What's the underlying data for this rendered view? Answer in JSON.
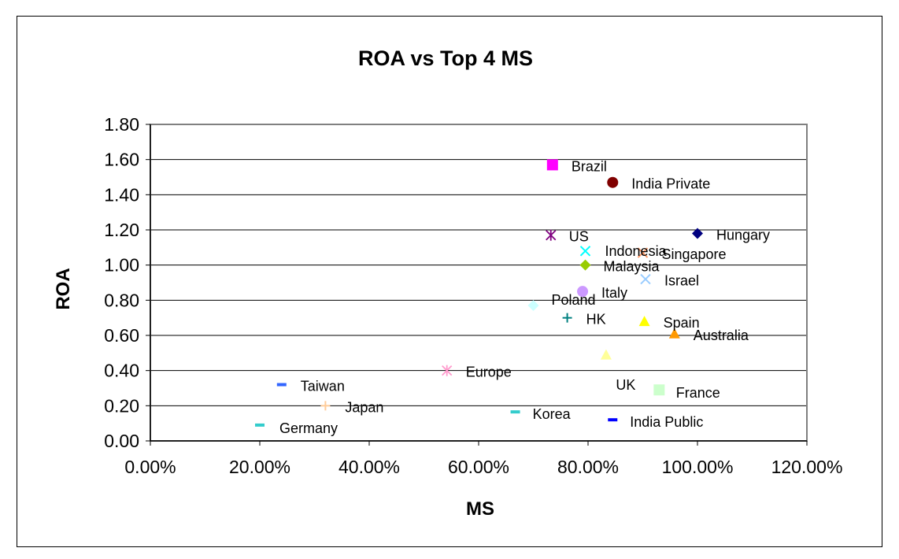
{
  "chart_data": {
    "type": "scatter",
    "title": "ROA vs Top 4 MS",
    "xlabel": "MS",
    "ylabel": "ROA",
    "xlim": [
      0,
      1.2
    ],
    "ylim": [
      0,
      1.8
    ],
    "x_ticks": [
      "0.00%",
      "20.00%",
      "40.00%",
      "60.00%",
      "80.00%",
      "100.00%",
      "120.00%"
    ],
    "y_ticks": [
      "0.00",
      "0.20",
      "0.40",
      "0.60",
      "0.80",
      "1.00",
      "1.20",
      "1.40",
      "1.60",
      "1.80"
    ],
    "grid": "horizontal",
    "legend": "none",
    "points": [
      {
        "label": "Brazil",
        "x": 0.735,
        "y": 1.57,
        "marker": "square",
        "color": "#FF00FF"
      },
      {
        "label": "India Private",
        "x": 0.845,
        "y": 1.47,
        "marker": "circle",
        "color": "#800000"
      },
      {
        "label": "Hungary",
        "x": 1.0,
        "y": 1.18,
        "marker": "diamond",
        "color": "#000080"
      },
      {
        "label": "US",
        "x": 0.732,
        "y": 1.17,
        "marker": "star",
        "color": "#800080"
      },
      {
        "label": "Indonesia",
        "x": 0.795,
        "y": 1.08,
        "marker": "x",
        "color": "#00FFFF"
      },
      {
        "label": "Singapore",
        "x": 0.9,
        "y": 1.07,
        "marker": "x",
        "color": "#FF9966"
      },
      {
        "label": "Malaysia",
        "x": 0.795,
        "y": 1.0,
        "marker": "diamond",
        "color": "#99CC00"
      },
      {
        "label": "Israel",
        "x": 0.905,
        "y": 0.92,
        "marker": "x",
        "color": "#99CCFF"
      },
      {
        "label": "Italy",
        "x": 0.79,
        "y": 0.85,
        "marker": "circle",
        "color": "#CC99FF"
      },
      {
        "label": "Poland",
        "x": 0.7,
        "y": 0.77,
        "marker": "diamond",
        "color": "#CCFFFF"
      },
      {
        "label": "HK",
        "x": 0.762,
        "y": 0.7,
        "marker": "plus",
        "color": "#008080"
      },
      {
        "label": "Spain",
        "x": 0.903,
        "y": 0.68,
        "marker": "triangle",
        "color": "#FFFF00"
      },
      {
        "label": "Australia",
        "x": 0.958,
        "y": 0.61,
        "marker": "triangle",
        "color": "#FF9900"
      },
      {
        "label": "",
        "x": 0.833,
        "y": 0.49,
        "marker": "triangle",
        "color": "#FFFF99"
      },
      {
        "label": "Europe",
        "x": 0.542,
        "y": 0.4,
        "marker": "star",
        "color": "#FF99CC"
      },
      {
        "label": "Taiwan",
        "x": 0.24,
        "y": 0.32,
        "marker": "dash",
        "color": "#3366FF"
      },
      {
        "label": "UK",
        "x": 0.93,
        "y": 0.29,
        "marker": "square",
        "color": "#CCFFCC"
      },
      {
        "label": "Japan",
        "x": 0.32,
        "y": 0.2,
        "marker": "plus",
        "color": "#FFCC99"
      },
      {
        "label": "Korea",
        "x": 0.667,
        "y": 0.165,
        "marker": "dash",
        "color": "#33CCCC"
      },
      {
        "label": "India Public",
        "x": 0.845,
        "y": 0.12,
        "marker": "dash",
        "color": "#0000FF"
      },
      {
        "label": "Germany",
        "x": 0.2,
        "y": 0.09,
        "marker": "dash",
        "color": "#33CCCC"
      }
    ],
    "free_labels": [
      "France"
    ]
  }
}
